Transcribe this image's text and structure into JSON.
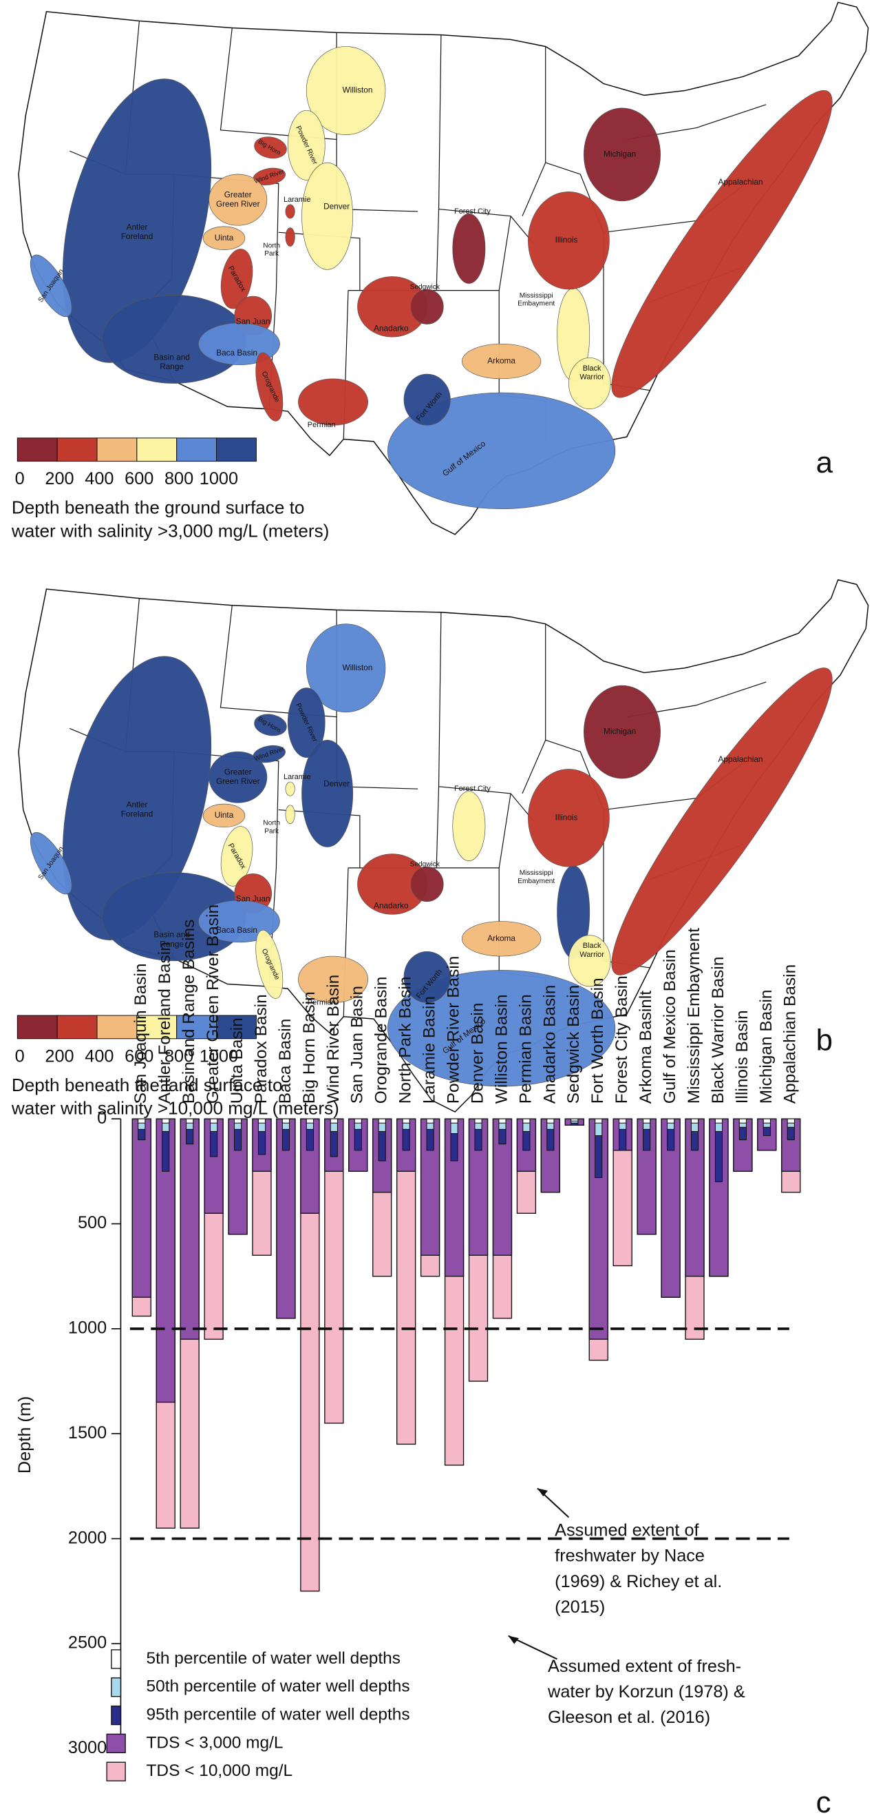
{
  "maps": [
    {
      "panel_label": "a",
      "legend": {
        "ticks": [
          0,
          200,
          400,
          600,
          800,
          1000
        ],
        "colors": [
          "#8c2833",
          "#c23a2e",
          "#f3bb7b",
          "#fcf4a3",
          "#5b87d4",
          "#2c4a90"
        ],
        "caption": [
          "Depth beneath the ground surface to",
          "water with salinity >3,000 mg/L (meters)"
        ]
      },
      "basins": [
        {
          "label": [
            "Antler",
            "Foreland"
          ],
          "color": "#2c4a90"
        },
        {
          "label": [
            "Basin and",
            "Range"
          ],
          "color": "#2c4a90"
        },
        {
          "label": [
            "San Joaquin"
          ],
          "color": "#5b87d4"
        },
        {
          "label": [
            "Williston"
          ],
          "color": "#fcf4a3"
        },
        {
          "label": [
            "Powder River"
          ],
          "color": "#fcf4a3"
        },
        {
          "label": [
            "Big Horn"
          ],
          "color": "#c23a2e"
        },
        {
          "label": [
            "Wind River"
          ],
          "color": "#c23a2e"
        },
        {
          "label": [
            "Greater",
            "Green River"
          ],
          "color": "#f3bb7b"
        },
        {
          "label": [
            "Laramie"
          ],
          "color": "#c23a2e"
        },
        {
          "label": [
            "Uinta"
          ],
          "color": "#f3bb7b"
        },
        {
          "label": [
            "North",
            "Park"
          ],
          "color": "#c23a2e"
        },
        {
          "label": [
            "Denver"
          ],
          "color": "#fcf4a3"
        },
        {
          "label": [
            "Paradox"
          ],
          "color": "#c23a2e"
        },
        {
          "label": [
            "San Juan"
          ],
          "color": "#c23a2e"
        },
        {
          "label": [
            "Baca Basin"
          ],
          "color": "#5b87d4"
        },
        {
          "label": [
            "Orogrande"
          ],
          "color": "#c23a2e"
        },
        {
          "label": [
            "Permian"
          ],
          "color": "#c23a2e"
        },
        {
          "label": [
            "Anadarko"
          ],
          "color": "#c23a2e"
        },
        {
          "label": [
            "Sedgwick"
          ],
          "color": "#8c2833"
        },
        {
          "label": [
            "Forest City"
          ],
          "color": "#8c2833"
        },
        {
          "label": [
            "Gulf of Mexico"
          ],
          "color": "#5b87d4"
        },
        {
          "label": [
            "Fort Worth"
          ],
          "color": "#2c4a90"
        },
        {
          "label": [
            "Arkoma"
          ],
          "color": "#f3bb7b"
        },
        {
          "label": [
            "Mississippi",
            "Embayment"
          ],
          "color": "#fcf4a3"
        },
        {
          "label": [
            "Black",
            "Warrior"
          ],
          "color": "#fcf4a3"
        },
        {
          "label": [
            "Illinois"
          ],
          "color": "#c23a2e"
        },
        {
          "label": [
            "Michigan"
          ],
          "color": "#8c2833"
        },
        {
          "label": [
            "Appalachian"
          ],
          "color": "#c23a2e"
        }
      ]
    },
    {
      "panel_label": "b",
      "legend": {
        "ticks": [
          0,
          200,
          400,
          600,
          800,
          1000
        ],
        "colors": [
          "#8c2833",
          "#c23a2e",
          "#f3bb7b",
          "#fcf4a3",
          "#5b87d4",
          "#2c4a90"
        ],
        "caption": [
          "Depth beneath the land surface to",
          "water with salinity >10,000 mg/L (meters)"
        ]
      },
      "basins": [
        {
          "label": [
            "Antler",
            "Foreland"
          ],
          "color": "#2c4a90"
        },
        {
          "label": [
            "Basin and",
            "Range"
          ],
          "color": "#2c4a90"
        },
        {
          "label": [
            "San Joaquin"
          ],
          "color": "#5b87d4"
        },
        {
          "label": [
            "Williston"
          ],
          "color": "#5b87d4"
        },
        {
          "label": [
            "Powder River"
          ],
          "color": "#2c4a90"
        },
        {
          "label": [
            "Big Horn"
          ],
          "color": "#2c4a90"
        },
        {
          "label": [
            "Wind River"
          ],
          "color": "#2c4a90"
        },
        {
          "label": [
            "Greater",
            "Green River"
          ],
          "color": "#2c4a90"
        },
        {
          "label": [
            "Laramie"
          ],
          "color": "#fcf4a3"
        },
        {
          "label": [
            "Uinta"
          ],
          "color": "#f3bb7b"
        },
        {
          "label": [
            "North",
            "Park"
          ],
          "color": "#fcf4a3"
        },
        {
          "label": [
            "Denver"
          ],
          "color": "#2c4a90"
        },
        {
          "label": [
            "Paradox"
          ],
          "color": "#fcf4a3"
        },
        {
          "label": [
            "San Juan"
          ],
          "color": "#c23a2e"
        },
        {
          "label": [
            "Baca Basin"
          ],
          "color": "#5b87d4"
        },
        {
          "label": [
            "Orogrande"
          ],
          "color": "#fcf4a3"
        },
        {
          "label": [
            "Permian"
          ],
          "color": "#f3bb7b"
        },
        {
          "label": [
            "Anadarko"
          ],
          "color": "#c23a2e"
        },
        {
          "label": [
            "Sedgwick"
          ],
          "color": "#8c2833"
        },
        {
          "label": [
            "Forest City"
          ],
          "color": "#fcf4a3"
        },
        {
          "label": [
            "Gulf of Mexico"
          ],
          "color": "#5b87d4"
        },
        {
          "label": [
            "Fort Worth"
          ],
          "color": "#2c4a90"
        },
        {
          "label": [
            "Arkoma"
          ],
          "color": "#f3bb7b"
        },
        {
          "label": [
            "Mississippi",
            "Embayment"
          ],
          "color": "#2c4a90"
        },
        {
          "label": [
            "Black",
            "Warrior"
          ],
          "color": "#fcf4a3"
        },
        {
          "label": [
            "Illinois"
          ],
          "color": "#c23a2e"
        },
        {
          "label": [
            "Michigan"
          ],
          "color": "#8c2833"
        },
        {
          "label": [
            "Appalachian"
          ],
          "color": "#c23a2e"
        }
      ]
    }
  ],
  "chart_data": {
    "type": "bar",
    "panel_label": "c",
    "y_label": "Depth (m)",
    "inverted": true,
    "ylim": [
      0,
      3000
    ],
    "yticks": [
      0,
      500,
      1000,
      1500,
      2000,
      2500,
      3000
    ],
    "categories": [
      "San Joaquin Basin",
      "Antler Foreland Basin",
      "Basin and Range Basins",
      "Greater Green River Basin",
      "Uinta Basin",
      "Paradox Basin",
      "Baca Basin",
      "Big Horn Basin",
      "Wind River Basin",
      "San Juan Basin",
      "Orogrande Basin",
      "North Park Basin",
      "Laramie Basin",
      "Powder River Basin",
      "Denver Basin",
      "Williston Basin",
      "Permian Basin",
      "Anadarko Basin",
      "Sedgwick Basin",
      "Fort Worth Basin",
      "Forest City Basin",
      "Arkoma Basinlt",
      "Gulf of Mexico Basin",
      "Mississippi Embayment",
      "Black Warrior Basin",
      "Illinois Basin",
      "Michigan Basin",
      "Appalachian Basin"
    ],
    "series": [
      {
        "name": "TDS < 10,000 mg/L",
        "color": "#f4b8c9",
        "kind": "bar",
        "values": [
          940,
          1950,
          1950,
          1050,
          550,
          650,
          950,
          2250,
          1450,
          250,
          750,
          1550,
          750,
          1650,
          1250,
          950,
          450,
          350,
          30,
          1150,
          700,
          550,
          850,
          1050,
          750,
          250,
          150,
          350
        ]
      },
      {
        "name": "TDS < 3,000 mg/L",
        "color": "#8e4fa8",
        "kind": "bar",
        "values": [
          850,
          1350,
          1050,
          450,
          550,
          250,
          950,
          450,
          250,
          250,
          350,
          250,
          650,
          750,
          650,
          650,
          250,
          350,
          30,
          1050,
          150,
          550,
          850,
          750,
          750,
          250,
          150,
          250
        ]
      },
      {
        "name": "95th percentile of water well depths",
        "color": "#2a2d8c",
        "kind": "well",
        "values": [
          100,
          250,
          120,
          180,
          150,
          170,
          150,
          150,
          180,
          150,
          200,
          150,
          150,
          200,
          150,
          120,
          150,
          150,
          30,
          280,
          150,
          150,
          150,
          150,
          300,
          100,
          80,
          100
        ]
      },
      {
        "name": "50th percentile of water well depths",
        "color": "#a9d9ec",
        "kind": "well",
        "values": [
          50,
          60,
          50,
          60,
          50,
          60,
          50,
          50,
          60,
          50,
          60,
          50,
          50,
          70,
          50,
          50,
          60,
          50,
          20,
          80,
          50,
          50,
          50,
          60,
          60,
          40,
          40,
          40
        ]
      },
      {
        "name": "5th percentile of water well depths",
        "color": "#ffffff",
        "kind": "well",
        "values": [
          20,
          20,
          20,
          20,
          20,
          20,
          20,
          20,
          20,
          20,
          20,
          20,
          20,
          20,
          20,
          20,
          20,
          20,
          10,
          20,
          20,
          20,
          20,
          20,
          20,
          20,
          20,
          20
        ]
      }
    ],
    "reference_lines": [
      {
        "value": 1000,
        "label": [
          "Assumed extent of",
          "freshwater by Nace",
          "(1969) & Richey et al.",
          "(2015)"
        ]
      },
      {
        "value": 2000,
        "label": [
          "Assumed extent of fresh-",
          "water by Korzun (1978) &",
          "Gleeson et al. (2016)"
        ]
      }
    ]
  }
}
